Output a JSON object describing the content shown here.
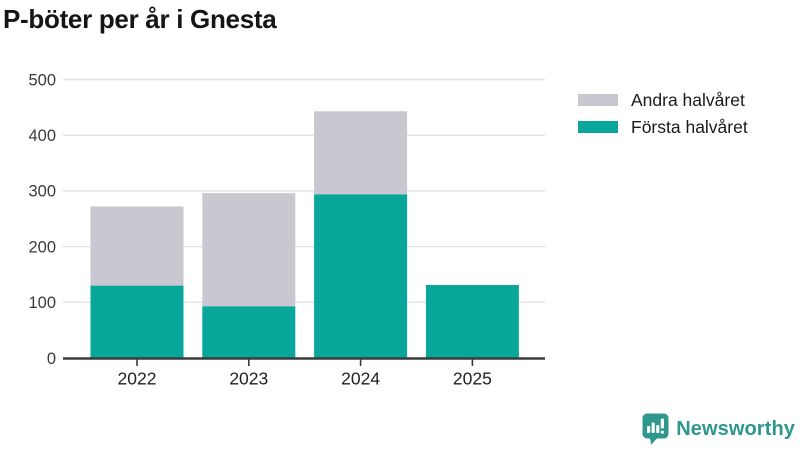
{
  "header": {
    "title": "P-böter per år i Gnesta"
  },
  "legend": {
    "items": [
      {
        "label": "Andra halvåret",
        "color": "#c9c8d0"
      },
      {
        "label": "Första halvåret",
        "color": "#09a69b"
      }
    ]
  },
  "chart_data": {
    "type": "bar",
    "stacked": true,
    "title": "P-böter per år i Gnesta",
    "categories": [
      "2022",
      "2023",
      "2024",
      "2025"
    ],
    "series": [
      {
        "name": "Första halvåret",
        "color": "#09a69b",
        "values": [
          130,
          93,
          294,
          131
        ]
      },
      {
        "name": "Andra halvåret",
        "color": "#c9c8d0",
        "values": [
          142,
          203,
          149,
          0
        ]
      }
    ],
    "totals": [
      272,
      296,
      443,
      131
    ],
    "xlabel": "",
    "ylabel": "",
    "ylim": [
      0,
      500
    ],
    "yticks": [
      0,
      100,
      200,
      300,
      400,
      500
    ],
    "grid": true,
    "legend_position": "top-right"
  },
  "style": {
    "axis_color": "#3b3b3b",
    "grid_color": "#e4e4e6",
    "ytick_label_color": "#3a3a3a",
    "xtick_label_color": "#222222",
    "background": "#ffffff"
  },
  "branding": {
    "logo_text": "Newsworthy",
    "logo_color": "#2f978e",
    "logo_icon": "bar-chart-speech-bubble-icon"
  }
}
